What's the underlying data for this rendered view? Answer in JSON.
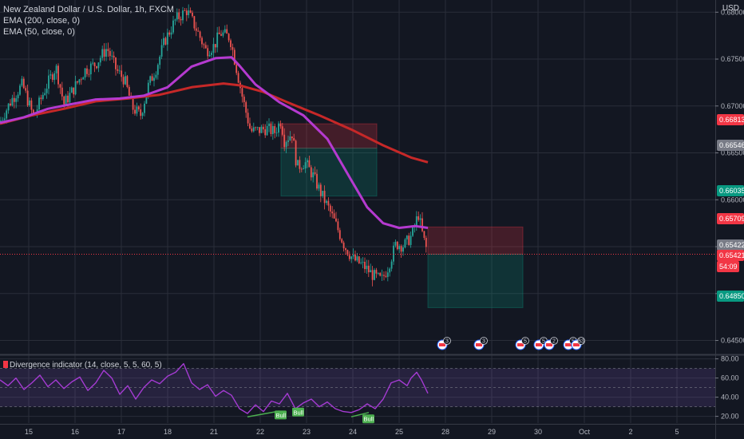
{
  "legend": {
    "symbol": "New Zealand Dollar / U.S. Dollar, 1h, FXCM",
    "ema200": "EMA (200, close, 0)",
    "ema50": "EMA (50, close, 0)"
  },
  "currency": "USD",
  "indicator_title": "Divergence indicator (14, close, 5, 5, 60, 5)",
  "colors": {
    "background": "#131722",
    "grid": "#2a2e39",
    "up": "#26a69a",
    "down": "#ef5350",
    "ema200": "#c62828",
    "ema50": "#b53ad0",
    "rsi": "#a53bd3",
    "bull": "#4caf50"
  },
  "chart_data": [
    {
      "type": "candlestick",
      "title": "New Zealand Dollar / U.S. Dollar, 1h, FXCM",
      "y_ticks": [
        0.645,
        0.65,
        0.655,
        0.66,
        0.665,
        0.67,
        0.675,
        0.68
      ],
      "ylim": [
        0.6436,
        0.6813
      ],
      "x_ticks": [
        "15",
        "16",
        "17",
        "18",
        "21",
        "22",
        "23",
        "24",
        "25",
        "28",
        "29",
        "30",
        "Oct",
        "2",
        "5"
      ],
      "price_path": [
        [
          0,
          0.6683
        ],
        [
          14,
          0.6706
        ],
        [
          28,
          0.6723
        ],
        [
          42,
          0.6688
        ],
        [
          56,
          0.6717
        ],
        [
          70,
          0.6742
        ],
        [
          80,
          0.6702
        ],
        [
          92,
          0.6718
        ],
        [
          106,
          0.6738
        ],
        [
          120,
          0.6745
        ],
        [
          134,
          0.6762
        ],
        [
          146,
          0.6738
        ],
        [
          156,
          0.6728
        ],
        [
          166,
          0.6698
        ],
        [
          176,
          0.669
        ],
        [
          186,
          0.6722
        ],
        [
          196,
          0.6741
        ],
        [
          206,
          0.6769
        ],
        [
          220,
          0.6792
        ],
        [
          234,
          0.6802
        ],
        [
          246,
          0.6782
        ],
        [
          258,
          0.6759
        ],
        [
          268,
          0.6764
        ],
        [
          276,
          0.6778
        ],
        [
          288,
          0.6773
        ],
        [
          296,
          0.6741
        ],
        [
          304,
          0.6708
        ],
        [
          314,
          0.6673
        ],
        [
          324,
          0.6674
        ],
        [
          334,
          0.6676
        ],
        [
          344,
          0.6672
        ],
        [
          352,
          0.6685
        ],
        [
          356,
          0.6663
        ],
        [
          366,
          0.6671
        ],
        [
          372,
          0.6635
        ],
        [
          382,
          0.664
        ],
        [
          392,
          0.6626
        ],
        [
          402,
          0.6607
        ],
        [
          412,
          0.659
        ],
        [
          422,
          0.6571
        ],
        [
          432,
          0.655
        ],
        [
          442,
          0.6537
        ],
        [
          456,
          0.6529
        ],
        [
          468,
          0.6519
        ],
        [
          478,
          0.6514
        ],
        [
          486,
          0.6528
        ],
        [
          496,
          0.6553
        ],
        [
          506,
          0.6551
        ],
        [
          516,
          0.6562
        ],
        [
          524,
          0.6585
        ],
        [
          530,
          0.656
        ],
        [
          536,
          0.6542
        ]
      ],
      "ema200_path": [
        [
          0,
          0.6681
        ],
        [
          40,
          0.669
        ],
        [
          80,
          0.6697
        ],
        [
          120,
          0.6705
        ],
        [
          160,
          0.6708
        ],
        [
          200,
          0.6712
        ],
        [
          240,
          0.672
        ],
        [
          280,
          0.6724
        ],
        [
          300,
          0.6722
        ],
        [
          330,
          0.6715
        ],
        [
          360,
          0.6704
        ],
        [
          400,
          0.669
        ],
        [
          440,
          0.6675
        ],
        [
          480,
          0.6658
        ],
        [
          515,
          0.6645
        ],
        [
          536,
          0.664
        ]
      ],
      "ema50_path": [
        [
          0,
          0.6682
        ],
        [
          30,
          0.6688
        ],
        [
          60,
          0.6697
        ],
        [
          90,
          0.6702
        ],
        [
          120,
          0.6707
        ],
        [
          150,
          0.6708
        ],
        [
          180,
          0.6711
        ],
        [
          210,
          0.672
        ],
        [
          240,
          0.6742
        ],
        [
          270,
          0.6751
        ],
        [
          290,
          0.6752
        ],
        [
          300,
          0.6743
        ],
        [
          320,
          0.6723
        ],
        [
          350,
          0.6704
        ],
        [
          380,
          0.669
        ],
        [
          410,
          0.6665
        ],
        [
          440,
          0.6621
        ],
        [
          460,
          0.6592
        ],
        [
          480,
          0.6575
        ],
        [
          500,
          0.657
        ],
        [
          520,
          0.6572
        ],
        [
          536,
          0.657
        ]
      ],
      "price_labels": [
        {
          "value": "0.66813",
          "color": "#f23645"
        },
        {
          "value": "0.66546",
          "color": "#787b86"
        },
        {
          "value": "0.66035",
          "color": "#089981"
        },
        {
          "value": "0.65709",
          "color": "#f23645"
        },
        {
          "value": "0.65422",
          "color": "#787b86"
        },
        {
          "value": "0.65421",
          "color": "#f23645"
        },
        {
          "value": "54:09",
          "color": "#f23645"
        },
        {
          "value": "0.64850",
          "color": "#089981"
        }
      ],
      "positions": [
        {
          "entry": 0.6655,
          "stop": 0.6681,
          "target": 0.6604
        },
        {
          "entry": 0.6542,
          "stop": 0.6571,
          "target": 0.6485
        }
      ],
      "event_badges": [
        "3",
        "3",
        "5",
        "5",
        "2",
        "5",
        "63"
      ]
    },
    {
      "type": "line",
      "title": "Divergence indicator (14, close, 5, 5, 60, 5)",
      "y_ticks": [
        20,
        40,
        60,
        80
      ],
      "ylim": [
        13,
        83
      ],
      "band": [
        30,
        70
      ],
      "rsi": [
        [
          0,
          58
        ],
        [
          10,
          52
        ],
        [
          20,
          60
        ],
        [
          30,
          48
        ],
        [
          40,
          55
        ],
        [
          50,
          63
        ],
        [
          60,
          51
        ],
        [
          70,
          58
        ],
        [
          80,
          49
        ],
        [
          90,
          56
        ],
        [
          100,
          61
        ],
        [
          110,
          47
        ],
        [
          120,
          55
        ],
        [
          130,
          68
        ],
        [
          140,
          60
        ],
        [
          150,
          43
        ],
        [
          160,
          52
        ],
        [
          170,
          38
        ],
        [
          180,
          50
        ],
        [
          190,
          58
        ],
        [
          200,
          54
        ],
        [
          210,
          62
        ],
        [
          220,
          66
        ],
        [
          230,
          75
        ],
        [
          240,
          55
        ],
        [
          250,
          48
        ],
        [
          260,
          53
        ],
        [
          270,
          41
        ],
        [
          280,
          47
        ],
        [
          290,
          42
        ],
        [
          300,
          28
        ],
        [
          310,
          23
        ],
        [
          320,
          32
        ],
        [
          330,
          25
        ],
        [
          340,
          36
        ],
        [
          350,
          33
        ],
        [
          360,
          44
        ],
        [
          370,
          28
        ],
        [
          380,
          34
        ],
        [
          390,
          38
        ],
        [
          400,
          30
        ],
        [
          410,
          35
        ],
        [
          420,
          28
        ],
        [
          430,
          25
        ],
        [
          440,
          24
        ],
        [
          450,
          27
        ],
        [
          460,
          33
        ],
        [
          470,
          28
        ],
        [
          480,
          38
        ],
        [
          490,
          55
        ],
        [
          500,
          58
        ],
        [
          510,
          52
        ],
        [
          515,
          60
        ],
        [
          522,
          66
        ],
        [
          528,
          58
        ],
        [
          536,
          44
        ]
      ],
      "divergence_labels": [
        "Bull",
        "Bull",
        "Bull"
      ]
    }
  ]
}
